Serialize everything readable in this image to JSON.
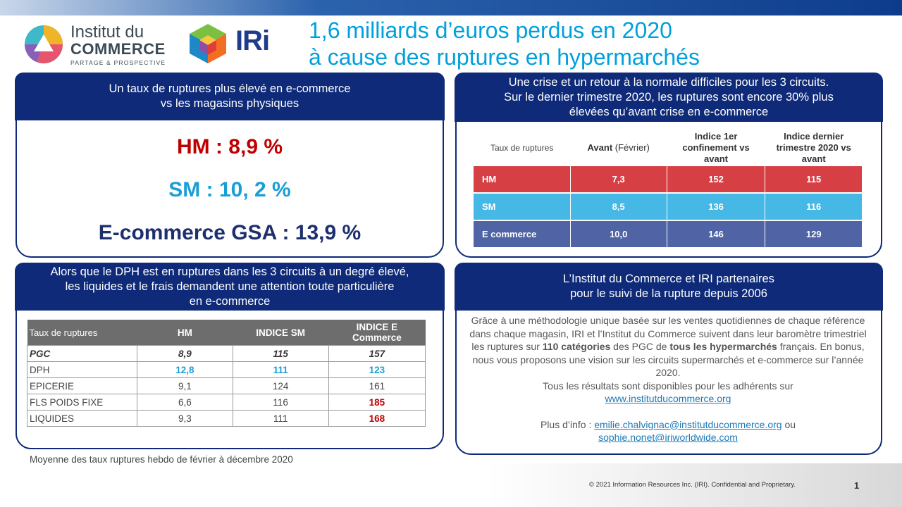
{
  "title": {
    "line1": "1,6 milliards d’euros perdus en 2020",
    "line2": "à cause des ruptures en hypermarchés"
  },
  "logos": {
    "idc_line1": "Institut du",
    "idc_line2": "COMMERCE",
    "idc_line3": "PARTAGE & PROSPECTIVE",
    "iri": "IRi"
  },
  "panel_tl": {
    "header_l1": "Un taux de ruptures plus élevé en e-commerce",
    "header_l2": "vs les magasins physiques",
    "hm": "HM : 8,9 %",
    "sm": "SM : 10, 2 %",
    "ecom": "E-commerce GSA : 13,9 %"
  },
  "panel_tr": {
    "header_l1": "Une crise et un retour à la normale difficiles pour les 3 circuits.",
    "header_l2": "Sur le dernier trimestre 2020, les ruptures sont encore 30% plus",
    "header_l3": "élevées qu’avant crise en e-commerce",
    "col0": "Taux de ruptures",
    "col1_bold": "Avant",
    "col1_rest": " (Février)",
    "col2": "Indice 1er confinement  vs avant",
    "col3": "Indice dernier trimestre 2020 vs avant",
    "rows": [
      {
        "label": "HM",
        "avant": "7,3",
        "conf": "152",
        "trim": "115",
        "color": "#d64045"
      },
      {
        "label": "SM",
        "avant": "8,5",
        "conf": "136",
        "trim": "116",
        "color": "#45b8e6"
      },
      {
        "label": "E commerce",
        "avant": "10,0",
        "conf": "146",
        "trim": "129",
        "color": "#4f63a5"
      }
    ]
  },
  "panel_bl": {
    "header_l1": "Alors que le DPH est en ruptures dans les 3 circuits à un degré élevé,",
    "header_l2": "les liquides et le frais demandent une attention toute particulière",
    "header_l3": "en e-commerce",
    "col0": "Taux de ruptures",
    "col1": "HM",
    "col2": "INDICE SM",
    "col3": "INDICE E Commerce",
    "rows": [
      {
        "label": "PGC",
        "hm": "8,9",
        "sm": "115",
        "ec": "157"
      },
      {
        "label": "DPH",
        "hm": "12,8",
        "sm": "111",
        "ec": "123"
      },
      {
        "label": "EPICERIE",
        "hm": "9,1",
        "sm": "124",
        "ec": "161"
      },
      {
        "label": "FLS POIDS FIXE",
        "hm": "6,6",
        "sm": "116",
        "ec": "185"
      },
      {
        "label": "LIQUIDES",
        "hm": "9,3",
        "sm": "111",
        "ec": "168"
      }
    ]
  },
  "panel_br": {
    "header_l1": "L’Institut du Commerce et IRI partenaires",
    "header_l2": "pour le suivi de la rupture depuis 2006",
    "p1a": "Grâce à une méthodologie unique basée sur les ventes quotidiennes de chaque référence dans chaque magasin, IRI et l’Institut du Commerce suivent dans leur baromètre trimestriel les ruptures sur ",
    "p1b": "110 catégories",
    "p1c": " des PGC de ",
    "p1d": "tous les hypermarchés",
    "p1e": " français. En bonus, nous vous proposons une vision sur les circuits supermarchés et e-commerce sur l’année 2020.",
    "p2": "Tous les résultats sont disponibles pour les adhérents sur",
    "link1": "www.institutducommerce.org",
    "info_label": "Plus d’info : ",
    "email1": "emilie.chalvignac@institutducommerce.org",
    "ou": " ou",
    "email2": "sophie.nonet@iriworldwide.com"
  },
  "footnote": "Moyenne  des taux  ruptures  hebdo de février à décembre 2020",
  "copyright": "© 2021 Information Resources Inc. (IRI).  Confidential and Proprietary.",
  "page_number": "1",
  "colors": {
    "navy": "#0e2a78",
    "title_blue": "#00a0dc",
    "hm_red": "#c00000",
    "sm_blue": "#1a9ed8",
    "ecom_navy": "#1e2f6e",
    "highlight_red": "#c00000",
    "highlight_blue": "#1a9ed8"
  }
}
